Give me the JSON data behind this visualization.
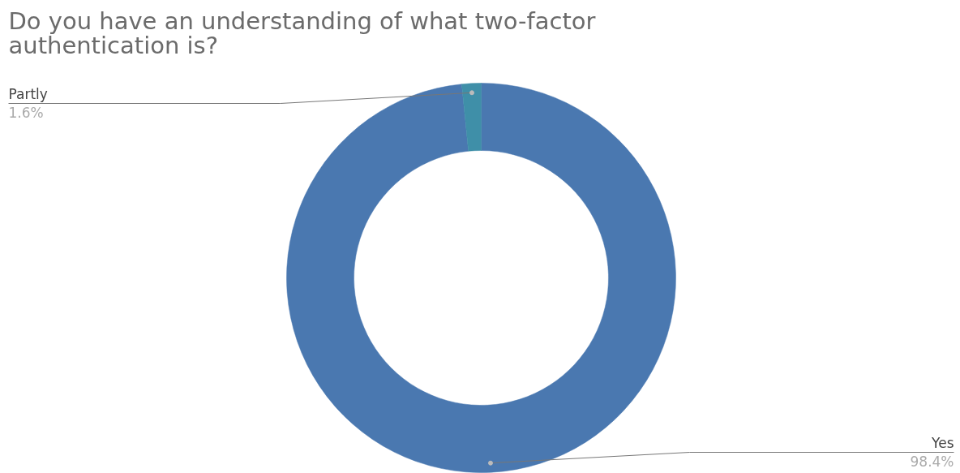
{
  "chart_data": {
    "type": "donut",
    "title": "Do you have an understanding of what two-factor authentication is?",
    "categories": [
      "Yes",
      "Partly"
    ],
    "values": [
      98.4,
      1.6
    ],
    "value_labels": [
      "98.4%",
      "1.6%"
    ],
    "colors": [
      "#4a78b0",
      "#3f8fa8"
    ]
  }
}
